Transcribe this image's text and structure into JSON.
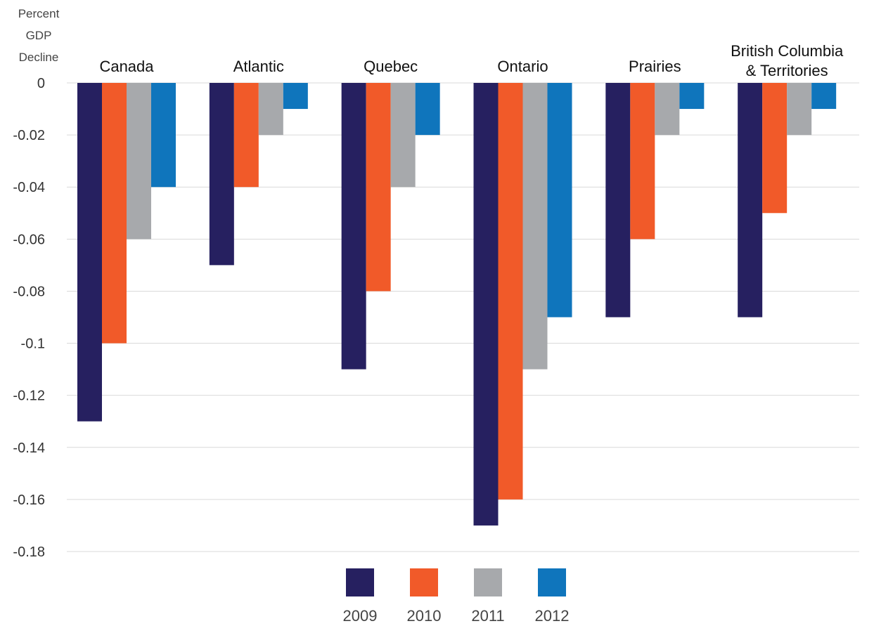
{
  "chart_data": {
    "type": "bar",
    "ylabel_lines": [
      "Percent",
      "GDP",
      "Decline"
    ],
    "categories": [
      [
        "Canada"
      ],
      [
        "Atlantic"
      ],
      [
        "Quebec"
      ],
      [
        "Ontario"
      ],
      [
        "Prairies"
      ],
      [
        "British Columbia",
        "& Territories"
      ]
    ],
    "series": [
      {
        "name": "2009",
        "color": "#262060",
        "values": [
          -0.13,
          -0.07,
          -0.11,
          -0.17,
          -0.09,
          -0.09
        ]
      },
      {
        "name": "2010",
        "color": "#f15a29",
        "values": [
          -0.1,
          -0.04,
          -0.08,
          -0.16,
          -0.06,
          -0.05
        ]
      },
      {
        "name": "2011",
        "color": "#a7a9ac",
        "values": [
          -0.06,
          -0.02,
          -0.04,
          -0.11,
          -0.02,
          -0.02
        ]
      },
      {
        "name": "2012",
        "color": "#0f75bc",
        "values": [
          -0.04,
          -0.01,
          -0.02,
          -0.09,
          -0.01,
          -0.01
        ]
      }
    ],
    "yticks": [
      "0",
      "-0.02",
      "-0.04",
      "-0.06",
      "-0.08",
      "-0.1",
      "-0.12",
      "-0.14",
      "-0.16",
      "-0.18"
    ],
    "ylim": [
      -0.18,
      0
    ],
    "grid": true,
    "legend_position": "bottom"
  }
}
